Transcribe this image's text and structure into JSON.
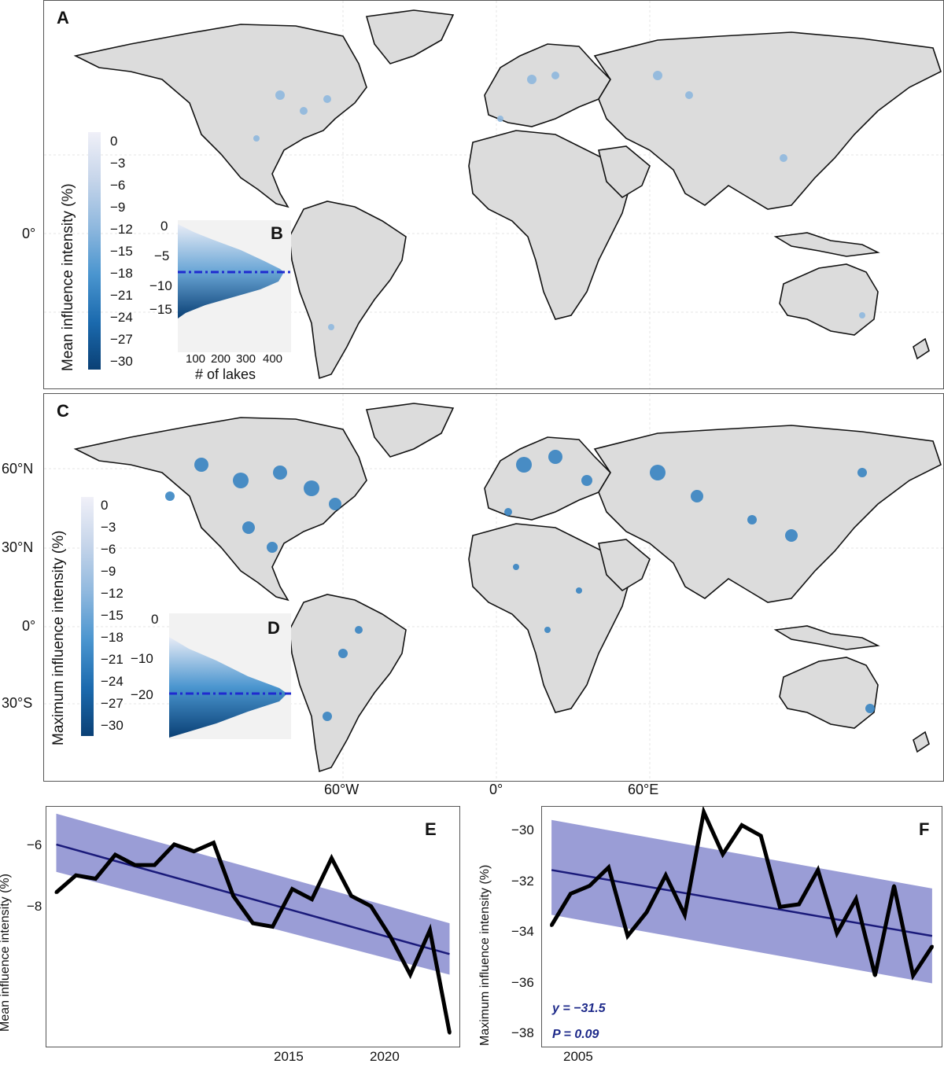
{
  "colors": {
    "land": "#dcdcdc",
    "coast": "#111111",
    "scale": [
      "#f0f0f8",
      "#dde3f0",
      "#c6d5ea",
      "#afc9e6",
      "#8fb8de",
      "#6aa6d6",
      "#4a95cf",
      "#2f7fc0",
      "#1b6aae",
      "#0f5597",
      "#0a4075"
    ],
    "trend_line": "#1a1a7a",
    "ci_band": "#8f92d1",
    "series": "#000000",
    "dash": "#1f2ad0"
  },
  "map_lat_labels": [
    "0°",
    "60°N",
    "30°N",
    "0°",
    "30°S"
  ],
  "map_lon_labels": [
    "60°W",
    "0°",
    "60°E"
  ],
  "panel_a": {
    "label": "A",
    "colorbar_title": "Mean influence intensity (%)",
    "colorbar_ticks": [
      "0",
      "−3",
      "−6",
      "−9",
      "−12",
      "−15",
      "−18",
      "−21",
      "−24",
      "−27",
      "−30"
    ]
  },
  "panel_b": {
    "label": "B",
    "y_ticks": [
      "0",
      "−5",
      "−10",
      "−15"
    ],
    "x_ticks": [
      "100",
      "200",
      "300",
      "400"
    ],
    "xlabel": "# of lakes"
  },
  "panel_c": {
    "label": "C",
    "colorbar_title": "Maximum influence intensity (%)",
    "colorbar_ticks": [
      "0",
      "−3",
      "−6",
      "−9",
      "−12",
      "−15",
      "−18",
      "−21",
      "−24",
      "−27",
      "−30"
    ]
  },
  "panel_d": {
    "label": "D",
    "y_ticks": [
      "0",
      "−10",
      "−20"
    ]
  },
  "chart_data": [
    {
      "type": "line",
      "panel": "E",
      "ylabel": "Mean influence intensity (%)",
      "x": [
        2003,
        2004,
        2005,
        2006,
        2007,
        2008,
        2009,
        2010,
        2011,
        2012,
        2013,
        2014,
        2015,
        2016,
        2017,
        2018,
        2019,
        2020,
        2021,
        2022,
        2023
      ],
      "values": [
        -7.5,
        -7.0,
        -7.1,
        -6.4,
        -6.7,
        -6.7,
        -6.1,
        -6.3,
        -6.05,
        -7.6,
        -8.4,
        -8.5,
        -7.4,
        -7.7,
        -6.5,
        -7.6,
        -7.9,
        -8.8,
        -9.9,
        -8.6,
        -11.6
      ],
      "trend": {
        "x0": 2003,
        "y0": -6.1,
        "x1": 2023,
        "y1": -9.3
      },
      "ci_lower": {
        "x": [
          2003,
          2023
        ],
        "y": [
          -6.9,
          -9.9
        ]
      },
      "ci_upper": {
        "x": [
          2003,
          2023
        ],
        "y": [
          -5.2,
          -8.4
        ]
      },
      "x_ticks": [
        "2015",
        "2020"
      ],
      "y_ticks": [
        "−6",
        "−8"
      ],
      "ylim": [
        -12,
        -5
      ],
      "xlim": [
        2002.5,
        2023.5
      ]
    },
    {
      "type": "line",
      "panel": "F",
      "ylabel": "Maximum influence intensity (%)",
      "x": [
        2003,
        2004,
        2005,
        2006,
        2007,
        2008,
        2009,
        2010,
        2011,
        2012,
        2013,
        2014,
        2015,
        2016,
        2017,
        2018,
        2019,
        2020,
        2021,
        2022,
        2023
      ],
      "values": [
        -33.7,
        -32.5,
        -32.2,
        -31.5,
        -34.1,
        -33.2,
        -31.8,
        -33.3,
        -29.4,
        -31.0,
        -29.9,
        -30.3,
        -33.0,
        -32.9,
        -31.6,
        -34.0,
        -32.7,
        -35.6,
        -32.2,
        -35.6,
        -34.5
      ],
      "trend": {
        "x0": 2003,
        "y0": -31.6,
        "x1": 2023,
        "y1": -34.1
      },
      "ci_lower": {
        "x": [
          2003,
          2023
        ],
        "y": [
          -33.3,
          -35.9
        ]
      },
      "ci_upper": {
        "x": [
          2003,
          2023
        ],
        "y": [
          -29.7,
          -32.3
        ]
      },
      "x_ticks": [
        "2005"
      ],
      "y_ticks": [
        "−30",
        "−32",
        "−34",
        "−36",
        "−38"
      ],
      "ylim": [
        -38.3,
        -29.2
      ],
      "xlim": [
        2002.5,
        2023.5
      ],
      "stat_eq": "y = −31.5",
      "stat_p": "P = 0.09"
    }
  ]
}
